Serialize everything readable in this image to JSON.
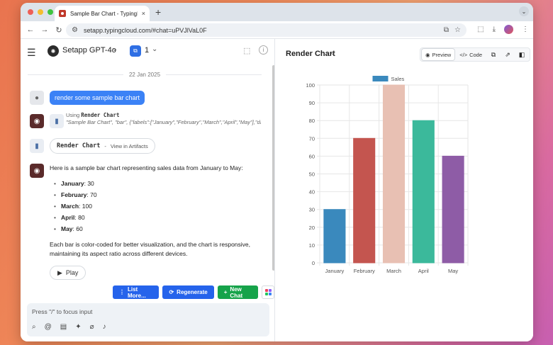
{
  "browser": {
    "tab_title": "Sample Bar Chart - TypingM...",
    "tab_close": "×",
    "new_tab": "+",
    "url": "setapp.typingcloud.com/#chat=uPVJlVaL0F"
  },
  "header": {
    "model_name": "Setapp GPT-4o",
    "count": "1"
  },
  "chat": {
    "date": "22 Jan 2025",
    "user_message": "render some sample bar chart",
    "tool_using_label": "Using",
    "tool_name": "Render Chart",
    "tool_args": "\"Sample Bar Chart\", \"bar\", {\"labels\":[\"January\",\"February\",\"March\",\"April\",\"May\"],\"datas",
    "artifact_name": "Render Chart",
    "artifact_separator": "-",
    "artifact_view": "View in Artifacts",
    "reply_intro": "Here is a sample bar chart representing sales data from January to May:",
    "reply_items": [
      {
        "month": "January",
        "value": ": 30"
      },
      {
        "month": "February",
        "value": ": 70"
      },
      {
        "month": "March",
        "value": ": 100"
      },
      {
        "month": "April",
        "value": ": 80"
      },
      {
        "month": "May",
        "value": ": 60"
      }
    ],
    "reply_outro": "Each bar is color-coded for better visualization, and the chart is responsive, maintaining its aspect ratio across different devices.",
    "play_label": "Play"
  },
  "actions": {
    "list_more": "List More...",
    "regenerate": "Regenerate",
    "new_chat": "New Chat"
  },
  "input": {
    "placeholder": "Press \"/\" to focus input"
  },
  "artifact_panel": {
    "title": "Render Chart",
    "preview_label": "Preview",
    "code_label": "Code"
  },
  "chart_data": {
    "type": "bar",
    "title": "",
    "categories": [
      "January",
      "February",
      "March",
      "April",
      "May"
    ],
    "series": [
      {
        "name": "Sales",
        "values": [
          30,
          70,
          100,
          80,
          60
        ]
      }
    ],
    "colors": [
      "#3a89bd",
      "#c4554f",
      "#e8c0b3",
      "#3bb99b",
      "#8e5ca6"
    ],
    "ylim": [
      0,
      100
    ],
    "yticks": [
      0,
      10,
      20,
      30,
      40,
      50,
      60,
      70,
      80,
      90,
      100
    ],
    "grid": true,
    "legend": "top-center",
    "xlabel": "",
    "ylabel": ""
  }
}
